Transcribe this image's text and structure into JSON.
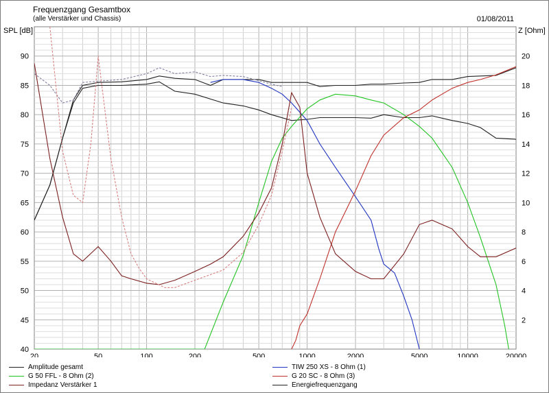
{
  "header": {
    "title": "Frequenzgang Gesamtbox",
    "subtitle": "(alle Verstärker und Chassis)",
    "date": "01/08/2011"
  },
  "axes": {
    "y_left_label": "SPL [dB]",
    "y_right_label": "Z [Ohm]"
  },
  "legend": [
    {
      "label": "Amplitude gesamt",
      "color": "#202020"
    },
    {
      "label": "G 50 FFL - 8 Ohm (2)",
      "color": "#22c422"
    },
    {
      "label": "Impedanz Verstärker 1",
      "color": "#7a1e1e"
    },
    {
      "label": "TIW 250 XS - 8 Ohm (1)",
      "color": "#1f33c0"
    },
    {
      "label": "G 20 SC - 8 Ohm (3)",
      "color": "#c0302a"
    },
    {
      "label": "Energiefrequenzgang",
      "color": "#202020"
    }
  ],
  "chart_data": {
    "type": "line",
    "x_scale": "log",
    "xlim": [
      20,
      20000
    ],
    "ylim": [
      40,
      95
    ],
    "y2lim": [
      0,
      22
    ],
    "grid": true,
    "x_ticks": [
      20,
      50,
      100,
      200,
      500,
      1000,
      2000,
      5000,
      10000,
      20000
    ],
    "x_tick_labels": [
      "20",
      "50",
      "100",
      "200",
      "500",
      "1000",
      "2000",
      "5000",
      "10000",
      "20000"
    ],
    "y_ticks": [
      40,
      45,
      50,
      55,
      60,
      65,
      70,
      75,
      80,
      85,
      90
    ],
    "y2_ticks": [
      2,
      4,
      6,
      8,
      10,
      12,
      14,
      16,
      18,
      20
    ],
    "series": [
      {
        "name": "Amplitude gesamt",
        "color": "#202020",
        "axis": "left",
        "points": [
          [
            20,
            62
          ],
          [
            25,
            68
          ],
          [
            30,
            76
          ],
          [
            35,
            82.5
          ],
          [
            40,
            85
          ],
          [
            50,
            85.5
          ],
          [
            70,
            85.6
          ],
          [
            100,
            86
          ],
          [
            120,
            86.6
          ],
          [
            150,
            86.2
          ],
          [
            200,
            86
          ],
          [
            250,
            85
          ],
          [
            300,
            86
          ],
          [
            400,
            86
          ],
          [
            500,
            86
          ],
          [
            600,
            85.5
          ],
          [
            800,
            85.5
          ],
          [
            1000,
            85.5
          ],
          [
            1200,
            84.8
          ],
          [
            1500,
            85
          ],
          [
            2000,
            85
          ],
          [
            2500,
            85.2
          ],
          [
            3000,
            85.2
          ],
          [
            4000,
            85.4
          ],
          [
            5000,
            85.5
          ],
          [
            6000,
            86
          ],
          [
            8000,
            86
          ],
          [
            10000,
            86.5
          ],
          [
            12000,
            86.6
          ],
          [
            15000,
            86.7
          ],
          [
            20000,
            88
          ]
        ]
      },
      {
        "name": "Energiefrequenzgang",
        "color": "#202020",
        "axis": "left",
        "points": [
          [
            20,
            62
          ],
          [
            25,
            68
          ],
          [
            30,
            76
          ],
          [
            35,
            82
          ],
          [
            40,
            84.5
          ],
          [
            50,
            85
          ],
          [
            70,
            85
          ],
          [
            100,
            85.2
          ],
          [
            120,
            85.6
          ],
          [
            150,
            84
          ],
          [
            200,
            83.5
          ],
          [
            300,
            82
          ],
          [
            400,
            81.5
          ],
          [
            500,
            80.8
          ],
          [
            600,
            80
          ],
          [
            800,
            79
          ],
          [
            1000,
            79.2
          ],
          [
            1200,
            79.5
          ],
          [
            1500,
            79.5
          ],
          [
            2000,
            79.5
          ],
          [
            2500,
            79.4
          ],
          [
            3000,
            80
          ],
          [
            4000,
            79.5
          ],
          [
            5000,
            79.5
          ],
          [
            6000,
            79.8
          ],
          [
            8000,
            79
          ],
          [
            10000,
            78.5
          ],
          [
            12000,
            77.8
          ],
          [
            15000,
            76
          ],
          [
            20000,
            75.8
          ]
        ]
      },
      {
        "name": "Amplitude gesamt (dashed)",
        "color": "#8080a0",
        "axis": "left",
        "dash": "3,2",
        "points": [
          [
            20,
            87
          ],
          [
            25,
            85
          ],
          [
            30,
            82
          ],
          [
            35,
            82.5
          ],
          [
            40,
            85.5
          ],
          [
            50,
            85.7
          ],
          [
            70,
            86
          ],
          [
            100,
            87
          ],
          [
            120,
            88
          ],
          [
            150,
            87
          ],
          [
            200,
            87.3
          ],
          [
            250,
            86.5
          ],
          [
            300,
            86.7
          ],
          [
            400,
            86.5
          ],
          [
            500,
            85.8
          ],
          [
            600,
            85.2
          ],
          [
            700,
            84.8
          ]
        ]
      },
      {
        "name": "TIW 250 XS - 8 Ohm (1)",
        "color": "#1f33c0",
        "axis": "left",
        "points": [
          [
            250,
            85.5
          ],
          [
            300,
            86
          ],
          [
            400,
            86
          ],
          [
            500,
            85.5
          ],
          [
            600,
            84.5
          ],
          [
            700,
            83.5
          ],
          [
            800,
            82
          ],
          [
            1000,
            79
          ],
          [
            1200,
            75
          ],
          [
            1500,
            71
          ],
          [
            2000,
            66
          ],
          [
            2500,
            62
          ],
          [
            2800,
            57
          ],
          [
            3000,
            54.5
          ],
          [
            3500,
            53
          ],
          [
            4000,
            49
          ],
          [
            4500,
            45
          ],
          [
            5000,
            40
          ]
        ]
      },
      {
        "name": "G 50 FFL - 8 Ohm (2)",
        "color": "#22c422",
        "axis": "left",
        "points": [
          [
            20,
            40
          ],
          [
            230,
            40
          ],
          [
            300,
            48
          ],
          [
            400,
            56
          ],
          [
            500,
            65
          ],
          [
            600,
            72
          ],
          [
            700,
            76
          ],
          [
            800,
            78
          ],
          [
            1000,
            81
          ],
          [
            1200,
            82.5
          ],
          [
            1500,
            83.5
          ],
          [
            2000,
            83.2
          ],
          [
            2500,
            82.5
          ],
          [
            3000,
            82
          ],
          [
            4000,
            80
          ],
          [
            5000,
            78
          ],
          [
            6000,
            76
          ],
          [
            8000,
            71
          ],
          [
            10000,
            65
          ],
          [
            12000,
            59
          ],
          [
            15000,
            51
          ],
          [
            17000,
            44
          ],
          [
            18000,
            40
          ]
        ]
      },
      {
        "name": "G 20 SC - 8 Ohm (3)",
        "color": "#c0302a",
        "axis": "left",
        "points": [
          [
            800,
            40
          ],
          [
            850,
            41.5
          ],
          [
            900,
            44
          ],
          [
            1000,
            46
          ],
          [
            1200,
            52
          ],
          [
            1500,
            60
          ],
          [
            2000,
            67
          ],
          [
            2500,
            73
          ],
          [
            3000,
            76.5
          ],
          [
            4000,
            79.5
          ],
          [
            5000,
            80.8
          ],
          [
            6000,
            82.5
          ],
          [
            8000,
            84.5
          ],
          [
            10000,
            85.5
          ],
          [
            12000,
            86
          ],
          [
            15000,
            86.8
          ],
          [
            20000,
            88.2
          ]
        ]
      },
      {
        "name": "Impedanz Verstärker 1",
        "color": "#7a1e1e",
        "axis": "right",
        "points": [
          [
            20,
            19.5
          ],
          [
            25,
            13
          ],
          [
            30,
            9
          ],
          [
            35,
            6.5
          ],
          [
            40,
            6
          ],
          [
            50,
            7
          ],
          [
            60,
            6
          ],
          [
            70,
            5
          ],
          [
            80,
            4.8
          ],
          [
            100,
            4.5
          ],
          [
            120,
            4.4
          ],
          [
            150,
            4.7
          ],
          [
            200,
            5.3
          ],
          [
            250,
            5.8
          ],
          [
            300,
            6.3
          ],
          [
            400,
            7.7
          ],
          [
            500,
            9.3
          ],
          [
            600,
            11
          ],
          [
            700,
            14
          ],
          [
            800,
            17.5
          ],
          [
            900,
            16.5
          ],
          [
            1000,
            12
          ],
          [
            1200,
            9
          ],
          [
            1500,
            6.5
          ],
          [
            2000,
            5.3
          ],
          [
            2500,
            4.8
          ],
          [
            3000,
            4.8
          ],
          [
            4000,
            6.5
          ],
          [
            5000,
            8.5
          ],
          [
            6000,
            8.8
          ],
          [
            8000,
            8.2
          ],
          [
            10000,
            7
          ],
          [
            12000,
            6.3
          ],
          [
            15000,
            6.3
          ],
          [
            20000,
            6.9
          ]
        ]
      },
      {
        "name": "Impedanz Verstärker 1 (dashed)",
        "color": "#d98080",
        "axis": "right",
        "dash": "3,2",
        "points": [
          [
            25,
            22
          ],
          [
            30,
            13.5
          ],
          [
            35,
            10.5
          ],
          [
            40,
            10
          ],
          [
            45,
            14
          ],
          [
            50,
            20
          ],
          [
            60,
            13
          ],
          [
            70,
            9
          ],
          [
            80,
            6.5
          ],
          [
            90,
            5.5
          ],
          [
            100,
            4.8
          ],
          [
            130,
            4.2
          ],
          [
            150,
            4.2
          ],
          [
            200,
            4.7
          ],
          [
            300,
            5.4
          ],
          [
            400,
            6.6
          ],
          [
            500,
            8.5
          ],
          [
            600,
            10.5
          ],
          [
            700,
            13.5
          ],
          [
            800,
            16.5
          ]
        ]
      }
    ]
  }
}
